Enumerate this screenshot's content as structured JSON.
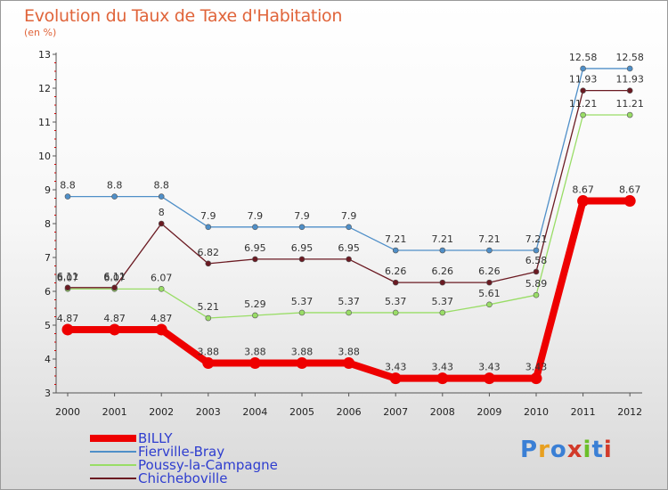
{
  "title": "Evolution du Taux de Taxe d'Habitation",
  "subtitle": "(en %)",
  "brand": "Proxiti",
  "chart_data": {
    "type": "line",
    "categories": [
      "2000",
      "2001",
      "2002",
      "2003",
      "2004",
      "2005",
      "2006",
      "2007",
      "2008",
      "2009",
      "2010",
      "2011",
      "2012"
    ],
    "ylim": [
      3,
      13
    ],
    "yticks": [
      3,
      4,
      5,
      6,
      7,
      8,
      9,
      10,
      11,
      12,
      13
    ],
    "grid": false,
    "legend_position": "bottom-left",
    "series": [
      {
        "name": "BILLY",
        "color": "#ee0000",
        "labels": [
          "4.87",
          "4.87",
          "4.87",
          "3.88",
          "3.88",
          "3.88",
          "3.88",
          "3.43",
          "3.43",
          "3.43",
          "3.43",
          "8.67",
          "8.67"
        ],
        "values": [
          4.87,
          4.87,
          4.87,
          3.88,
          3.88,
          3.88,
          3.88,
          3.43,
          3.43,
          3.43,
          3.43,
          8.67,
          8.67
        ]
      },
      {
        "name": "Fierville-Bray",
        "color": "#4f8fc8",
        "labels": [
          "8.8",
          "8.8",
          "8.8",
          "7.9",
          "7.9",
          "7.9",
          "7.9",
          "7.21",
          "7.21",
          "7.21",
          "7.21",
          "12.58",
          "12.58"
        ],
        "values": [
          8.8,
          8.8,
          8.8,
          7.9,
          7.9,
          7.9,
          7.9,
          7.21,
          7.21,
          7.21,
          7.21,
          12.58,
          12.58
        ]
      },
      {
        "name": "Poussy-la-Campagne",
        "color": "#99dd66",
        "labels": [
          "6.07",
          "6.07",
          "6.07",
          "5.21",
          "5.29",
          "5.37",
          "5.37",
          "5.37",
          "5.37",
          "5.61",
          "5.89",
          "11.21",
          "11.21"
        ],
        "values": [
          6.07,
          6.07,
          6.07,
          5.21,
          5.29,
          5.37,
          5.37,
          5.37,
          5.37,
          5.61,
          5.89,
          11.21,
          11.21
        ]
      },
      {
        "name": "Chicheboville",
        "color": "#6b1a22",
        "labels": [
          "6.11",
          "6.11",
          "8",
          "6.82",
          "6.95",
          "6.95",
          "6.95",
          "6.26",
          "6.26",
          "6.26",
          "6.58",
          "11.93",
          "11.93"
        ],
        "values": [
          6.11,
          6.11,
          8,
          6.82,
          6.95,
          6.95,
          6.95,
          6.26,
          6.26,
          6.26,
          6.58,
          11.93,
          11.93
        ]
      }
    ]
  }
}
